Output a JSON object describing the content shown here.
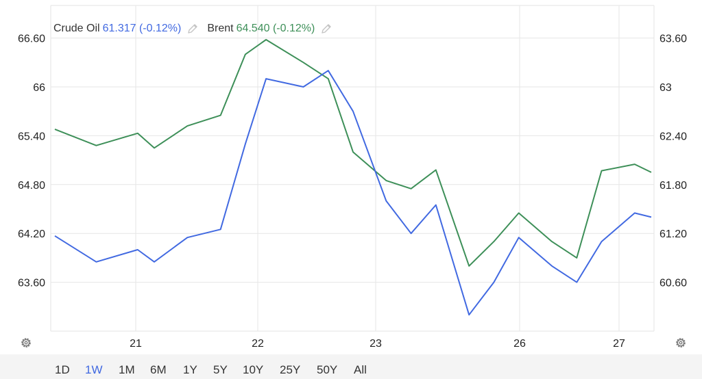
{
  "legend": [
    {
      "name": "Crude Oil",
      "value": "61.317 (-0.12%)",
      "color": "#4169e1"
    },
    {
      "name": "Brent",
      "value": "64.540 (-0.12%)",
      "color": "#3d8f58"
    }
  ],
  "icons": {
    "edit": "pencil-icon",
    "settings": "gear-icon"
  },
  "range_buttons": [
    {
      "label": "1D",
      "active": false
    },
    {
      "label": "1W",
      "active": true
    },
    {
      "label": "1M",
      "active": false
    },
    {
      "label": "6M",
      "active": false
    },
    {
      "label": "1Y",
      "active": false
    },
    {
      "label": "5Y",
      "active": false
    },
    {
      "label": "10Y",
      "active": false
    },
    {
      "label": "25Y",
      "active": false
    },
    {
      "label": "50Y",
      "active": false
    },
    {
      "label": "All",
      "active": false
    }
  ],
  "chart_data": {
    "type": "line",
    "x_tick_labels": [
      "21",
      "22",
      "23",
      "26",
      "27"
    ],
    "left_axis": {
      "ticks": [
        "66.60",
        "66",
        "65.40",
        "64.80",
        "64.20",
        "63.60"
      ],
      "min": 63.0,
      "max": 67.0
    },
    "right_axis": {
      "ticks": [
        "63.60",
        "63",
        "62.40",
        "61.80",
        "61.20",
        "60.60"
      ],
      "min": 60.0,
      "max": 64.0
    },
    "grid": true,
    "legend_position": "top-left",
    "series": [
      {
        "name": "Crude Oil",
        "axis": "right",
        "color": "#4169e1",
        "x": [
          0,
          0.5,
          1.0,
          1.2,
          1.6,
          2.0,
          2.3,
          2.55,
          3.0,
          3.3,
          3.6,
          4.0,
          4.3,
          4.6,
          5.0,
          5.3,
          5.6,
          6.0,
          6.3,
          6.6,
          7.0,
          7.2
        ],
        "values": [
          61.17,
          60.85,
          61.0,
          60.85,
          61.15,
          61.25,
          62.3,
          63.1,
          63.0,
          63.2,
          62.7,
          61.6,
          61.2,
          61.55,
          60.2,
          60.6,
          61.15,
          60.8,
          60.6,
          61.1,
          61.45,
          61.4
        ]
      },
      {
        "name": "Brent",
        "axis": "left",
        "color": "#3d8f58",
        "x": [
          0,
          0.5,
          1.0,
          1.2,
          1.6,
          2.0,
          2.3,
          2.55,
          3.0,
          3.3,
          3.6,
          4.0,
          4.3,
          4.6,
          5.0,
          5.3,
          5.6,
          6.0,
          6.3,
          6.6,
          7.0,
          7.2
        ],
        "values": [
          65.48,
          65.28,
          65.43,
          65.25,
          65.52,
          65.65,
          66.4,
          66.58,
          66.3,
          66.1,
          65.2,
          64.85,
          64.75,
          64.98,
          63.8,
          64.1,
          64.45,
          64.1,
          63.9,
          64.97,
          65.05,
          64.95
        ]
      }
    ]
  }
}
